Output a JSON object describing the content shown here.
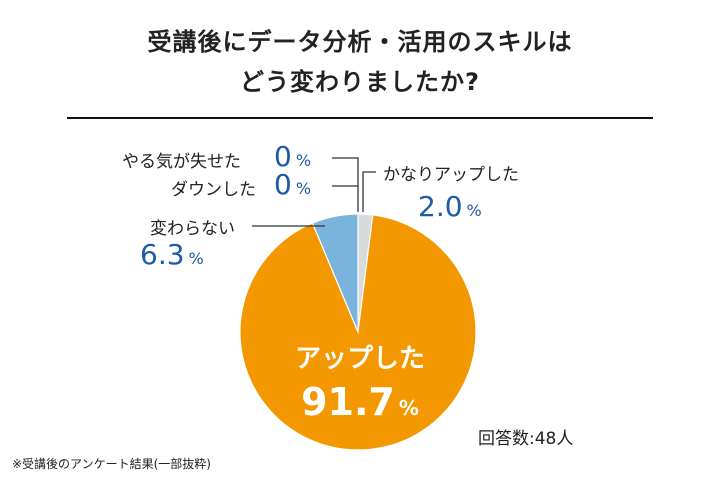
{
  "chart_data": {
    "type": "pie",
    "title_line1": "受講後にデータ分析・活用のスキルは",
    "title_line2": "どう変わりましたか?",
    "slices": [
      {
        "label": "かなりアップした",
        "value": 2.0,
        "display": "2.0",
        "color": "#d9dadb"
      },
      {
        "label": "アップした",
        "value": 91.7,
        "display": "91.7",
        "color": "#f39800"
      },
      {
        "label": "変わらない",
        "value": 6.3,
        "display": "6.3",
        "color": "#7ab4dc"
      },
      {
        "label": "ダウンした",
        "value": 0,
        "display": "0",
        "color": "#7ab4dc"
      },
      {
        "label": "やる気が失せた",
        "value": 0,
        "display": "0",
        "color": "#7ab4dc"
      }
    ],
    "unit": "%",
    "respondents": "回答数:48人"
  },
  "footnote": "※受講後のアンケート結果(一部抜粋)"
}
